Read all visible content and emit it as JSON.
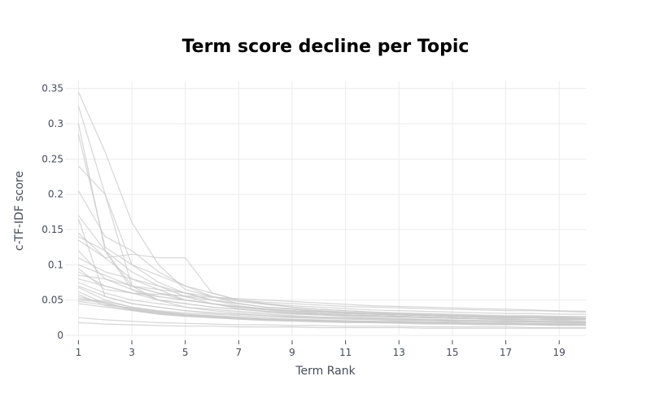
{
  "chart_data": {
    "type": "line",
    "title": "Term score decline per Topic",
    "xlabel": "Term Rank",
    "ylabel": "c-TF-IDF score",
    "x": [
      1,
      2,
      3,
      4,
      5,
      6,
      7,
      8,
      9,
      10,
      11,
      12,
      13,
      14,
      15,
      16,
      17,
      18,
      19,
      20
    ],
    "x_ticks": [
      1,
      3,
      5,
      7,
      9,
      11,
      13,
      15,
      17,
      19
    ],
    "y_ticks": [
      0,
      0.05,
      0.1,
      0.15,
      0.2,
      0.25,
      0.3,
      0.35
    ],
    "y_tick_labels": [
      "0",
      "0.05",
      "0.1",
      "0.15",
      "0.2",
      "0.25",
      "0.3",
      "0.35"
    ],
    "xlim": [
      0.5,
      20
    ],
    "ylim": [
      0,
      0.36
    ],
    "grid": true,
    "line_color": "#c8c8c8",
    "series": [
      {
        "values": [
          0.345,
          0.26,
          0.16,
          0.1,
          0.065,
          0.055,
          0.048,
          0.044,
          0.04,
          0.037,
          0.035,
          0.033,
          0.032,
          0.031,
          0.03,
          0.029,
          0.028,
          0.028,
          0.027,
          0.027
        ]
      },
      {
        "values": [
          0.325,
          0.2,
          0.1,
          0.085,
          0.07,
          0.055,
          0.045,
          0.04,
          0.037,
          0.034,
          0.032,
          0.03,
          0.029,
          0.028,
          0.027,
          0.026,
          0.025,
          0.025,
          0.024,
          0.023
        ]
      },
      {
        "values": [
          0.3,
          0.12,
          0.09,
          0.07,
          0.055,
          0.045,
          0.038,
          0.034,
          0.031,
          0.029,
          0.027,
          0.025,
          0.024,
          0.023,
          0.022,
          0.021,
          0.021,
          0.02,
          0.02,
          0.019
        ]
      },
      {
        "values": [
          0.285,
          0.125,
          0.1,
          0.075,
          0.06,
          0.05,
          0.042,
          0.037,
          0.034,
          0.031,
          0.029,
          0.027,
          0.026,
          0.025,
          0.024,
          0.023,
          0.022,
          0.021,
          0.021,
          0.02
        ]
      },
      {
        "values": [
          0.24,
          0.2,
          0.07,
          0.05,
          0.04,
          0.035,
          0.032,
          0.03,
          0.028,
          0.026,
          0.025,
          0.024,
          0.023,
          0.022,
          0.021,
          0.02,
          0.02,
          0.019,
          0.019,
          0.018
        ]
      },
      {
        "values": [
          0.205,
          0.14,
          0.12,
          0.09,
          0.07,
          0.06,
          0.05,
          0.045,
          0.04,
          0.037,
          0.035,
          0.033,
          0.031,
          0.03,
          0.029,
          0.028,
          0.027,
          0.027,
          0.026,
          0.025
        ]
      },
      {
        "values": [
          0.17,
          0.12,
          0.065,
          0.05,
          0.045,
          0.04,
          0.037,
          0.034,
          0.032,
          0.03,
          0.029,
          0.028,
          0.027,
          0.026,
          0.025,
          0.024,
          0.023,
          0.023,
          0.022,
          0.022
        ]
      },
      {
        "values": [
          0.165,
          0.055,
          0.045,
          0.04,
          0.035,
          0.032,
          0.03,
          0.028,
          0.027,
          0.026,
          0.025,
          0.024,
          0.023,
          0.022,
          0.021,
          0.021,
          0.02,
          0.02,
          0.019,
          0.019
        ]
      },
      {
        "values": [
          0.145,
          0.11,
          0.115,
          0.11,
          0.11,
          0.06,
          0.05,
          0.045,
          0.042,
          0.04,
          0.038,
          0.036,
          0.035,
          0.034,
          0.033,
          0.032,
          0.031,
          0.031,
          0.03,
          0.03
        ]
      },
      {
        "values": [
          0.14,
          0.12,
          0.07,
          0.06,
          0.05,
          0.045,
          0.04,
          0.037,
          0.035,
          0.033,
          0.031,
          0.03,
          0.029,
          0.028,
          0.027,
          0.026,
          0.026,
          0.025,
          0.025,
          0.024
        ]
      },
      {
        "values": [
          0.135,
          0.11,
          0.08,
          0.07,
          0.06,
          0.05,
          0.045,
          0.04,
          0.037,
          0.035,
          0.033,
          0.031,
          0.03,
          0.029,
          0.028,
          0.027,
          0.027,
          0.026,
          0.026,
          0.025
        ]
      },
      {
        "values": [
          0.12,
          0.08,
          0.065,
          0.055,
          0.05,
          0.045,
          0.04,
          0.037,
          0.035,
          0.033,
          0.031,
          0.03,
          0.029,
          0.028,
          0.027,
          0.026,
          0.025,
          0.025,
          0.024,
          0.024
        ]
      },
      {
        "values": [
          0.11,
          0.09,
          0.08,
          0.065,
          0.05,
          0.045,
          0.04,
          0.036,
          0.033,
          0.031,
          0.029,
          0.028,
          0.027,
          0.026,
          0.025,
          0.024,
          0.023,
          0.023,
          0.022,
          0.022
        ]
      },
      {
        "values": [
          0.1,
          0.085,
          0.07,
          0.06,
          0.055,
          0.05,
          0.045,
          0.04,
          0.038,
          0.035,
          0.033,
          0.032,
          0.03,
          0.029,
          0.028,
          0.027,
          0.026,
          0.026,
          0.025,
          0.024
        ]
      },
      {
        "values": [
          0.095,
          0.065,
          0.06,
          0.055,
          0.05,
          0.045,
          0.041,
          0.038,
          0.035,
          0.033,
          0.031,
          0.03,
          0.029,
          0.028,
          0.027,
          0.026,
          0.025,
          0.025,
          0.024,
          0.024
        ]
      },
      {
        "values": [
          0.09,
          0.07,
          0.06,
          0.05,
          0.045,
          0.04,
          0.037,
          0.034,
          0.032,
          0.03,
          0.029,
          0.028,
          0.027,
          0.026,
          0.025,
          0.024,
          0.024,
          0.023,
          0.023,
          0.022
        ]
      },
      {
        "values": [
          0.085,
          0.08,
          0.07,
          0.065,
          0.06,
          0.055,
          0.05,
          0.047,
          0.045,
          0.043,
          0.041,
          0.04,
          0.039,
          0.038,
          0.037,
          0.036,
          0.035,
          0.035,
          0.034,
          0.033
        ]
      },
      {
        "values": [
          0.08,
          0.07,
          0.06,
          0.058,
          0.056,
          0.054,
          0.052,
          0.05,
          0.048,
          0.046,
          0.044,
          0.042,
          0.041,
          0.04,
          0.039,
          0.038,
          0.037,
          0.036,
          0.035,
          0.034
        ]
      },
      {
        "values": [
          0.075,
          0.06,
          0.05,
          0.045,
          0.04,
          0.037,
          0.034,
          0.032,
          0.03,
          0.029,
          0.028,
          0.027,
          0.026,
          0.025,
          0.024,
          0.024,
          0.023,
          0.023,
          0.022,
          0.022
        ]
      },
      {
        "values": [
          0.07,
          0.055,
          0.045,
          0.04,
          0.035,
          0.032,
          0.03,
          0.028,
          0.026,
          0.025,
          0.024,
          0.023,
          0.022,
          0.021,
          0.021,
          0.02,
          0.02,
          0.019,
          0.019,
          0.018
        ]
      },
      {
        "values": [
          0.068,
          0.05,
          0.04,
          0.035,
          0.032,
          0.03,
          0.028,
          0.026,
          0.025,
          0.024,
          0.023,
          0.022,
          0.021,
          0.021,
          0.02,
          0.02,
          0.019,
          0.019,
          0.018,
          0.018
        ]
      },
      {
        "values": [
          0.062,
          0.045,
          0.038,
          0.033,
          0.03,
          0.028,
          0.026,
          0.024,
          0.023,
          0.022,
          0.021,
          0.02,
          0.02,
          0.019,
          0.019,
          0.018,
          0.018,
          0.017,
          0.017,
          0.017
        ]
      },
      {
        "values": [
          0.058,
          0.042,
          0.036,
          0.032,
          0.029,
          0.027,
          0.025,
          0.023,
          0.022,
          0.021,
          0.02,
          0.02,
          0.019,
          0.018,
          0.018,
          0.017,
          0.017,
          0.017,
          0.016,
          0.016
        ]
      },
      {
        "values": [
          0.055,
          0.045,
          0.037,
          0.031,
          0.028,
          0.026,
          0.024,
          0.022,
          0.021,
          0.02,
          0.019,
          0.019,
          0.018,
          0.018,
          0.017,
          0.017,
          0.016,
          0.016,
          0.016,
          0.015
        ]
      },
      {
        "values": [
          0.052,
          0.048,
          0.04,
          0.034,
          0.03,
          0.027,
          0.025,
          0.023,
          0.022,
          0.021,
          0.02,
          0.019,
          0.019,
          0.018,
          0.018,
          0.017,
          0.017,
          0.016,
          0.016,
          0.016
        ]
      },
      {
        "values": [
          0.05,
          0.047,
          0.036,
          0.03,
          0.027,
          0.025,
          0.023,
          0.022,
          0.021,
          0.02,
          0.019,
          0.018,
          0.018,
          0.017,
          0.017,
          0.016,
          0.016,
          0.015,
          0.015,
          0.015
        ]
      },
      {
        "values": [
          0.048,
          0.043,
          0.039,
          0.033,
          0.029,
          0.027,
          0.025,
          0.023,
          0.022,
          0.021,
          0.02,
          0.019,
          0.018,
          0.018,
          0.017,
          0.017,
          0.016,
          0.016,
          0.015,
          0.015
        ]
      },
      {
        "values": [
          0.045,
          0.04,
          0.035,
          0.03,
          0.027,
          0.025,
          0.023,
          0.021,
          0.02,
          0.019,
          0.018,
          0.018,
          0.017,
          0.016,
          0.016,
          0.015,
          0.015,
          0.015,
          0.014,
          0.014
        ]
      },
      {
        "values": [
          0.025,
          0.022,
          0.02,
          0.018,
          0.017,
          0.016,
          0.015,
          0.015,
          0.014,
          0.014,
          0.013,
          0.013,
          0.013,
          0.012,
          0.012,
          0.012,
          0.012,
          0.011,
          0.011,
          0.011
        ]
      },
      {
        "values": [
          0.018,
          0.016,
          0.015,
          0.014,
          0.013,
          0.013,
          0.012,
          0.012,
          0.012,
          0.011,
          0.011,
          0.011,
          0.011,
          0.01,
          0.01,
          0.01,
          0.01,
          0.01,
          0.01,
          0.01
        ]
      }
    ]
  }
}
